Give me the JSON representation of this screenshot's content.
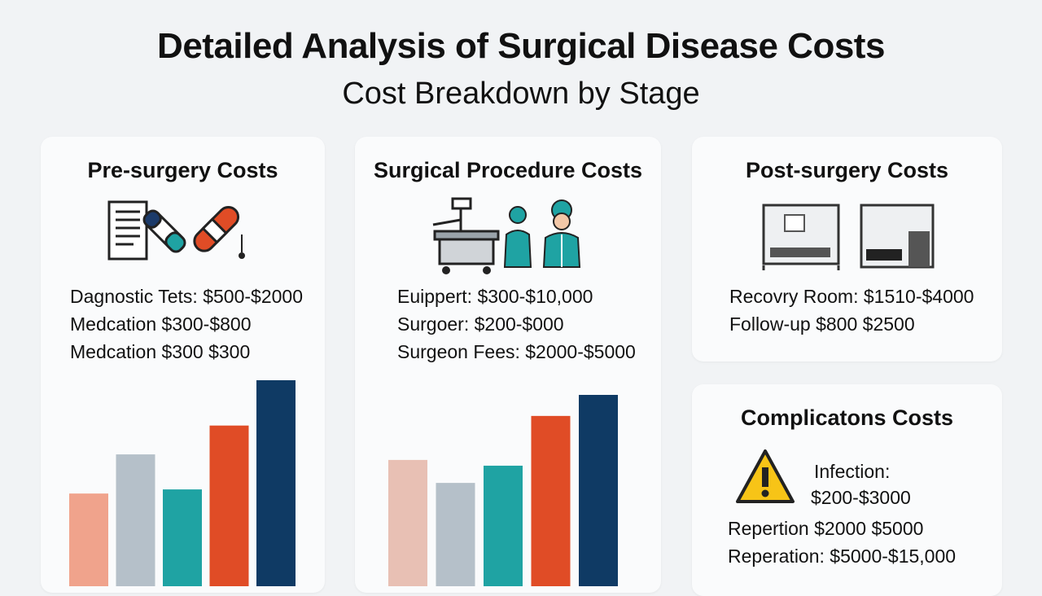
{
  "title": "Detailed Analysis of Surgical Disease Costs",
  "subtitle": "Cost Breakdown by Stage",
  "colors": {
    "salmon": "#f0a38c",
    "gray": "#b5c0c9",
    "teal": "#1fa3a3",
    "orange": "#e04c26",
    "navy": "#0f3a64",
    "pink": "#e8c0b4",
    "warning": "#f7c417"
  },
  "cards": {
    "pre": {
      "title": "Pre-surgery Costs",
      "icons": [
        "document-icon",
        "vial-icon",
        "syringe-icon"
      ],
      "lines": [
        "Dagnostic Tets: $500-$2000",
        "Medcation $300-$800",
        "Medcation $300 $300"
      ]
    },
    "surg": {
      "title": "Surgical Procedure Costs",
      "icons": [
        "surgical-machine-icon",
        "nurse-icon",
        "surgeon-icon"
      ],
      "lines": [
        "Euippert: $300-$10,000",
        "Surgoer: $200-$000",
        "Surgeon Fees: $2000-$5000"
      ]
    },
    "post": {
      "title": "Post-surgery Costs",
      "icons": [
        "recovery-room-icon",
        "hospital-bed-icon"
      ],
      "lines": [
        "Recovry Room: $1510-$4000",
        "Follow-up $800 $2500"
      ]
    },
    "comp": {
      "title": "Complicatons Costs",
      "icon": "warning-icon",
      "infection_label": "Infection:",
      "infection_value": "$200-$3000",
      "line1": "Repertion $2000 $5000",
      "line2": "Reperation: $5000-$15,000"
    }
  },
  "chart_data": [
    {
      "type": "bar",
      "title": "",
      "categories": [
        "",
        "",
        "",
        "",
        ""
      ],
      "values": [
        45,
        64,
        47,
        78,
        100
      ],
      "colors": [
        "#f0a38c",
        "#b5c0c9",
        "#1fa3a3",
        "#e04c26",
        "#0f3a64"
      ],
      "ylim": [
        0,
        100
      ],
      "grid": false
    },
    {
      "type": "bar",
      "title": "",
      "categories": [
        "",
        "",
        "",
        "",
        ""
      ],
      "values": [
        66,
        54,
        63,
        89,
        100
      ],
      "colors": [
        "#e8c0b4",
        "#b5c0c9",
        "#1fa3a3",
        "#e04c26",
        "#0f3a64"
      ],
      "ylim": [
        0,
        100
      ],
      "grid": false
    }
  ]
}
